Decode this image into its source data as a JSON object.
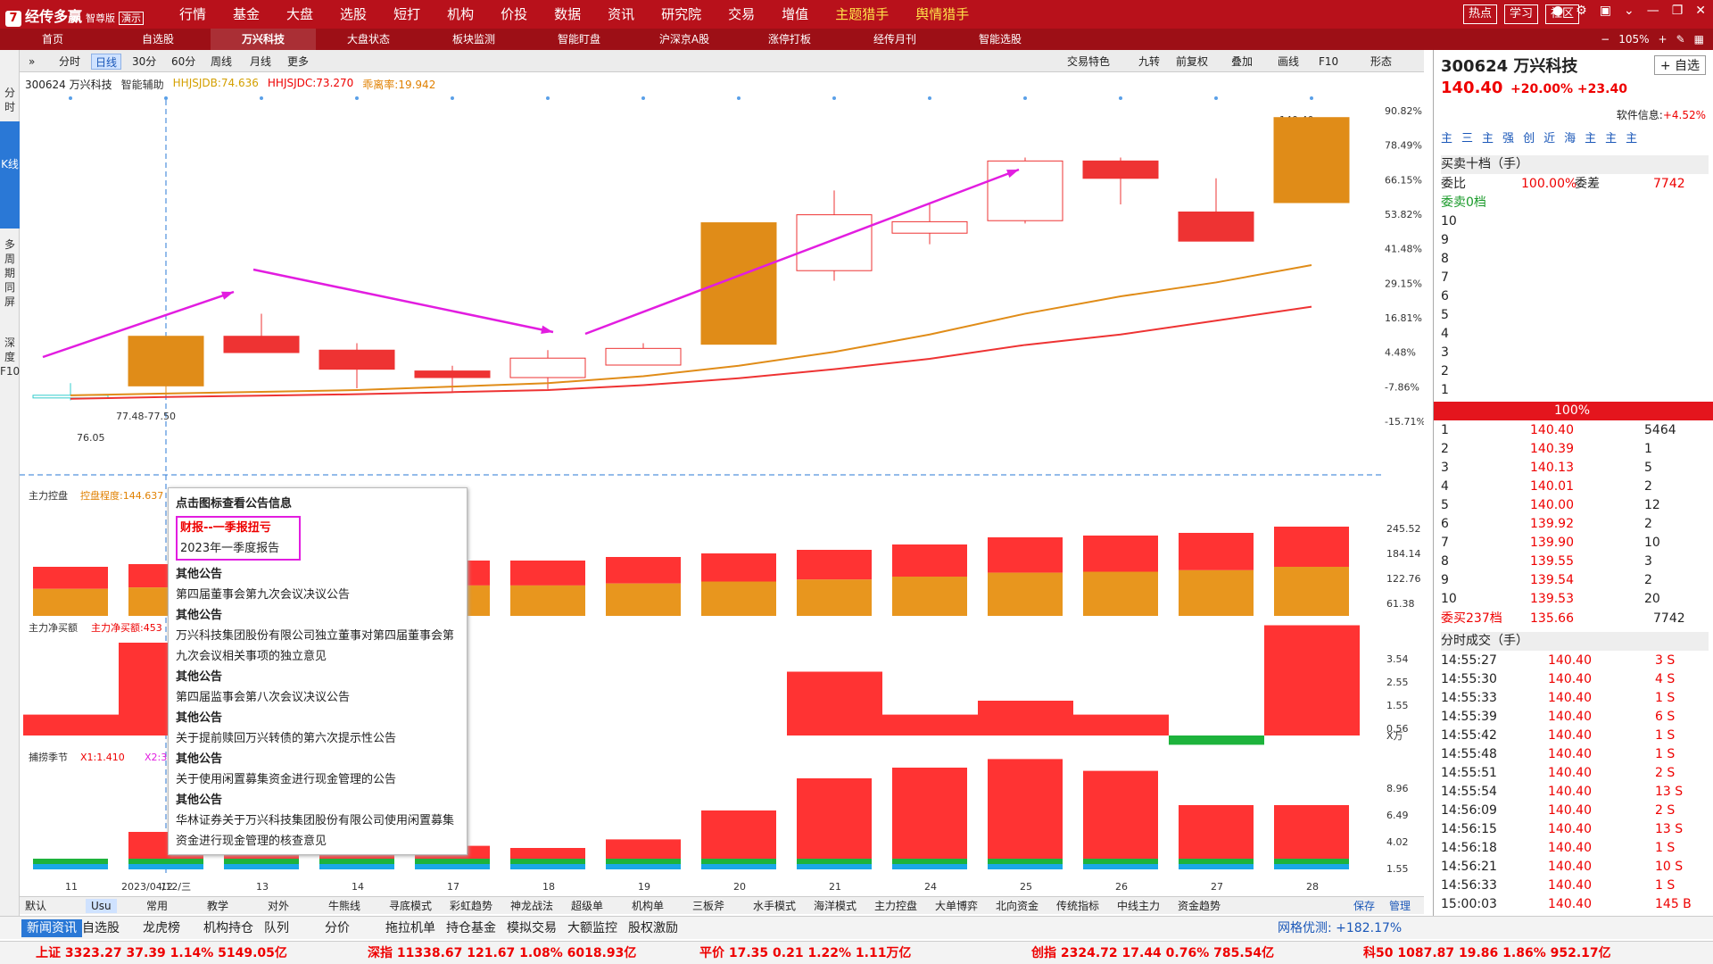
{
  "app": {
    "logo": "经传多赢",
    "edition": "智尊版",
    "demo": "演示",
    "main_menu": [
      "行情",
      "基金",
      "大盘",
      "选股",
      "短打",
      "机构",
      "价投",
      "数据",
      "资讯",
      "研究院",
      "交易",
      "增值",
      "主题猎手",
      "舆情猎手"
    ],
    "top_right": [
      "热点",
      "学习",
      "社区"
    ],
    "tabs": [
      "首页",
      "自选股",
      "万兴科技",
      "大盘状态",
      "板块监测",
      "智能盯盘",
      "沪深京A股",
      "涨停打板",
      "经传月刊",
      "智能选股"
    ],
    "zoom": "105%"
  },
  "left_nav": [
    "分时",
    "K线",
    "多周期同屏",
    "深度F10"
  ],
  "chart_toolbar": {
    "periods": [
      "分时",
      "日线",
      "30分",
      "60分",
      "周线",
      "月线",
      "更多"
    ],
    "right_tools": [
      "交易特色",
      "九转",
      "前复权",
      "叠加",
      "画线",
      "F10",
      "形态"
    ]
  },
  "chart_info": {
    "code_name": "300624 万兴科技",
    "assist": "智能辅助",
    "hhjsjdb": "HHJSJDB:74.636",
    "hhjsjdc": "HHJSJDC:73.270",
    "boom": "乖离率:19.942",
    "price_label": "77.48-77.50",
    "low_label": "76.05"
  },
  "chart_data": {
    "type": "candlestick",
    "x": [
      "11",
      "12",
      "13",
      "14",
      "17",
      "18",
      "19",
      "20",
      "21",
      "24",
      "25",
      "26",
      "27",
      "28"
    ],
    "x_highlight": "2023/04/12/三",
    "ohlc": [
      {
        "o": 77.5,
        "h": 81,
        "l": 76.05,
        "c": 77.5,
        "color": "cyan"
      },
      {
        "o": 94.5,
        "h": 94.5,
        "l": 77.5,
        "c": 80.2,
        "color": "orange"
      },
      {
        "o": 94.5,
        "h": 101,
        "l": 90,
        "c": 89.8,
        "color": "red"
      },
      {
        "o": 90.5,
        "h": 92.5,
        "l": 79.5,
        "c": 85.0,
        "color": "red"
      },
      {
        "o": 84.5,
        "h": 86,
        "l": 78.5,
        "c": 82.6,
        "color": "red"
      },
      {
        "o": 82.6,
        "h": 90.5,
        "l": 79.3,
        "c": 88.2,
        "color": "hollow"
      },
      {
        "o": 86.2,
        "h": 92.5,
        "l": 86.2,
        "c": 91.0,
        "color": "hollow"
      },
      {
        "o": 127.2,
        "h": 127.2,
        "l": 92.2,
        "c": 92.2,
        "color": "orange"
      },
      {
        "o": 113.4,
        "h": 136.5,
        "l": 110.5,
        "c": 129.5,
        "color": "hollow"
      },
      {
        "o": 124.2,
        "h": 133.0,
        "l": 121.0,
        "c": 127.5,
        "color": "hollow"
      },
      {
        "o": 127.8,
        "h": 146.0,
        "l": 127.0,
        "c": 145.0,
        "color": "hollow"
      },
      {
        "o": 145.0,
        "h": 146.0,
        "l": 132.5,
        "c": 140.0,
        "color": "red"
      },
      {
        "o": 130.3,
        "h": 140.0,
        "l": 122.2,
        "c": 121.9,
        "color": "red"
      },
      {
        "o": 157.5,
        "h": 157.5,
        "l": 133.0,
        "c": 133.0,
        "color": "orange"
      }
    ],
    "y_ticks": [
      "90.82%",
      "78.49%",
      "66.15%",
      "53.82%",
      "41.48%",
      "29.15%",
      "16.81%",
      "4.48%",
      "-7.86%",
      "-15.71%"
    ],
    "top_price": "140.40"
  },
  "sub_panels": {
    "p1": {
      "title": "主力控盘",
      "value": "控盘程度:144.637",
      "ticks": [
        "245.52",
        "184.14",
        "122.76",
        "61.38"
      ]
    },
    "p2": {
      "title": "主力净买额",
      "value": "主力净买额:453",
      "ticks": [
        "3.54",
        "2.55",
        "1.55",
        "0.56"
      ],
      "unit": "X万"
    },
    "p3": {
      "title": "捕捞季节",
      "x1": "X1:1.410",
      "x2": "X2:3",
      "ticks": [
        "8.96",
        "6.49",
        "4.02",
        "1.55"
      ]
    }
  },
  "tooltip": {
    "header": "点击图标查看公告信息",
    "highlight_title": "财报--一季报扭亏",
    "highlight_sub": "2023年一季度报告",
    "items": [
      {
        "cat": "其他公告",
        "text": "第四届董事会第九次会议决议公告"
      },
      {
        "cat": "其他公告",
        "text": "万兴科技集团股份有限公司独立董事对第四届董事会第九次会议相关事项的独立意见"
      },
      {
        "cat": "其他公告",
        "text": "第四届监事会第八次会议决议公告"
      },
      {
        "cat": "其他公告",
        "text": "关于提前赎回万兴转债的第六次提示性公告"
      },
      {
        "cat": "其他公告",
        "text": "关于使用闲置募集资金进行现金管理的公告"
      },
      {
        "cat": "其他公告",
        "text": "华林证券关于万兴科技集团股份有限公司使用闲置募集资金进行现金管理的核查意见"
      }
    ]
  },
  "right_panel": {
    "title": "300624 万兴科技",
    "add": "+ 自选",
    "price": "140.40",
    "change": "+20.00% +23.40",
    "soft_info": "软件信息:",
    "soft_val": "+4.52%",
    "mini_tabs": [
      "主",
      "三",
      "主",
      "强",
      "创",
      "近",
      "海",
      "主",
      "主",
      "主"
    ],
    "book_title": "买卖十档（手）",
    "ratio_label": "委比",
    "ratio": "100.00%",
    "diff_label": "委差",
    "diff": "7742",
    "sell_label": "委卖0档",
    "sells": [
      "10",
      "9",
      "8",
      "7",
      "6",
      "5",
      "4",
      "3",
      "2",
      "1"
    ],
    "pct_bar": "100%",
    "buys": [
      {
        "n": "1",
        "p": "140.40",
        "v": "5464"
      },
      {
        "n": "2",
        "p": "140.39",
        "v": "1"
      },
      {
        "n": "3",
        "p": "140.13",
        "v": "5"
      },
      {
        "n": "4",
        "p": "140.01",
        "v": "2"
      },
      {
        "n": "5",
        "p": "140.00",
        "v": "12"
      },
      {
        "n": "6",
        "p": "139.92",
        "v": "2"
      },
      {
        "n": "7",
        "p": "139.90",
        "v": "10"
      },
      {
        "n": "8",
        "p": "139.55",
        "v": "3"
      },
      {
        "n": "9",
        "p": "139.54",
        "v": "2"
      },
      {
        "n": "10",
        "p": "139.53",
        "v": "20"
      }
    ],
    "buy_total_label": "委买237档",
    "buy_total_price": "135.66",
    "buy_total_vol": "7742",
    "trades_title": "分时成交（手）",
    "trades": [
      {
        "t": "14:55:27",
        "p": "140.40",
        "v": "3 S"
      },
      {
        "t": "14:55:30",
        "p": "140.40",
        "v": "4 S"
      },
      {
        "t": "14:55:33",
        "p": "140.40",
        "v": "1 S"
      },
      {
        "t": "14:55:39",
        "p": "140.40",
        "v": "6 S"
      },
      {
        "t": "14:55:42",
        "p": "140.40",
        "v": "1 S"
      },
      {
        "t": "14:55:48",
        "p": "140.40",
        "v": "1 S"
      },
      {
        "t": "14:55:51",
        "p": "140.40",
        "v": "2 S"
      },
      {
        "t": "14:55:54",
        "p": "140.40",
        "v": "13 S"
      },
      {
        "t": "14:56:09",
        "p": "140.40",
        "v": "2 S"
      },
      {
        "t": "14:56:15",
        "p": "140.40",
        "v": "13 S"
      },
      {
        "t": "14:56:18",
        "p": "140.40",
        "v": "1 S"
      },
      {
        "t": "14:56:21",
        "p": "140.40",
        "v": "10 S"
      },
      {
        "t": "14:56:33",
        "p": "140.40",
        "v": "1 S"
      },
      {
        "t": "15:00:03",
        "p": "140.40",
        "v": "145 B"
      }
    ]
  },
  "bottom_indicators": [
    "默认",
    "Usu",
    "常用",
    "教学",
    "对外",
    "牛熊线",
    "寻底模式",
    "彩虹趋势",
    "神龙战法",
    "超级单",
    "机构单",
    "三板斧",
    "水手模式",
    "海洋模式",
    "主力控盘",
    "大单博弈",
    "北向资金",
    "传统指标",
    "中线主力",
    "资金趋势"
  ],
  "bottom_right": [
    "保存",
    "管理"
  ],
  "news_tabs": [
    "新闻资讯",
    "自选股",
    "龙虎榜",
    "机构持仓",
    "队列",
    "分价",
    "拖拉机单",
    "持仓基金",
    "模拟交易",
    "大额监控",
    "股权激励"
  ],
  "grid_opt": "网格优测: +182.17%",
  "indices": [
    "上证 3323.27 37.39 1.14% 5149.05亿",
    "深指 11338.67 121.67 1.08% 6018.93亿",
    "平价 17.35 0.21 1.22% 1.11万亿",
    "创指 2324.72 17.44 0.76% 785.54亿",
    "科50 1087.87 19.86 1.86% 952.17亿"
  ]
}
